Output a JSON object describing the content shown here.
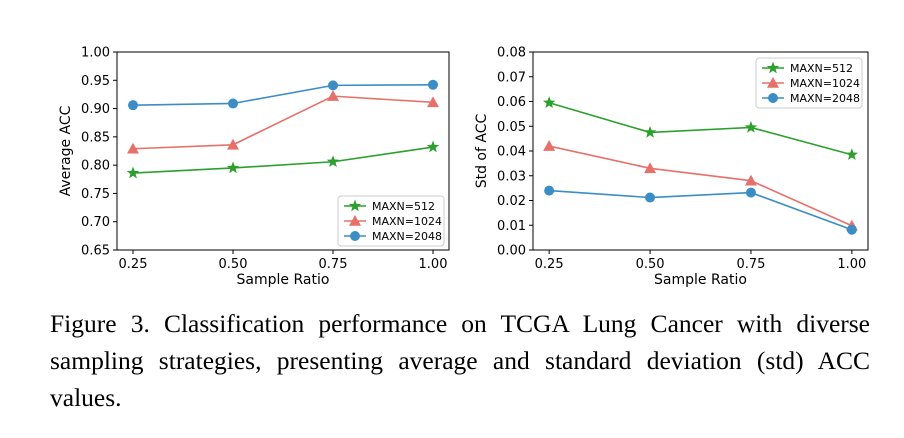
{
  "chart_data": [
    {
      "type": "line",
      "xlabel": "Sample Ratio",
      "ylabel": "Average ACC",
      "x": [
        0.25,
        0.5,
        0.75,
        1.0
      ],
      "xticks": [
        "0.25",
        "0.50",
        "0.75",
        "1.00"
      ],
      "ylim": [
        0.65,
        1.0
      ],
      "yticks": [
        "0.65",
        "0.70",
        "0.75",
        "0.80",
        "0.85",
        "0.90",
        "0.95",
        "1.00"
      ],
      "legend_position": "bottom-right",
      "grid": false,
      "series": [
        {
          "name": "MAXN=512",
          "marker": "star",
          "color": "#2ca02c",
          "values": [
            0.786,
            0.795,
            0.806,
            0.832
          ]
        },
        {
          "name": "MAXN=1024",
          "marker": "triangle",
          "color": "#e8706a",
          "values": [
            0.829,
            0.836,
            0.922,
            0.911
          ]
        },
        {
          "name": "MAXN=2048",
          "marker": "circle",
          "color": "#3b8ec5",
          "values": [
            0.906,
            0.909,
            0.941,
            0.942
          ]
        }
      ]
    },
    {
      "type": "line",
      "xlabel": "Sample Ratio",
      "ylabel": "Std of ACC",
      "x": [
        0.25,
        0.5,
        0.75,
        1.0
      ],
      "xticks": [
        "0.25",
        "0.50",
        "0.75",
        "1.00"
      ],
      "ylim": [
        0.0,
        0.08
      ],
      "yticks": [
        "0.00",
        "0.01",
        "0.02",
        "0.03",
        "0.04",
        "0.05",
        "0.06",
        "0.07",
        "0.08"
      ],
      "legend_position": "top-right",
      "grid": false,
      "series": [
        {
          "name": "MAXN=512",
          "marker": "star",
          "color": "#2ca02c",
          "values": [
            0.0595,
            0.0475,
            0.0495,
            0.0385
          ]
        },
        {
          "name": "MAXN=1024",
          "marker": "triangle",
          "color": "#e8706a",
          "values": [
            0.042,
            0.033,
            0.028,
            0.0098
          ]
        },
        {
          "name": "MAXN=2048",
          "marker": "circle",
          "color": "#3b8ec5",
          "values": [
            0.024,
            0.0212,
            0.0232,
            0.0082
          ]
        }
      ]
    }
  ],
  "caption": "Figure 3. Classification performance on TCGA Lung Cancer with diverse sampling strategies, presenting average and standard deviation (std) ACC values."
}
